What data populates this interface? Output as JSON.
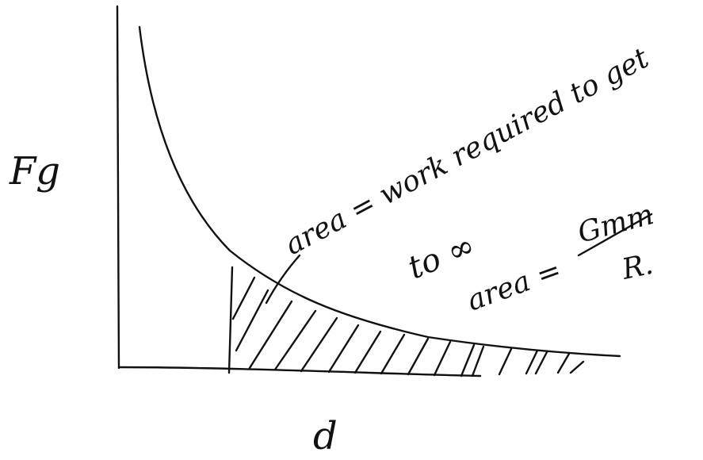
{
  "diagram": {
    "y_axis_label": "Fg",
    "x_axis_label": "d",
    "annotations": {
      "area_work_line1": "area = work required to get",
      "area_work_line2": "to ∞",
      "area_formula_prefix": "area =",
      "area_formula_numerator": "Gmm",
      "area_formula_denominator": "R."
    }
  }
}
